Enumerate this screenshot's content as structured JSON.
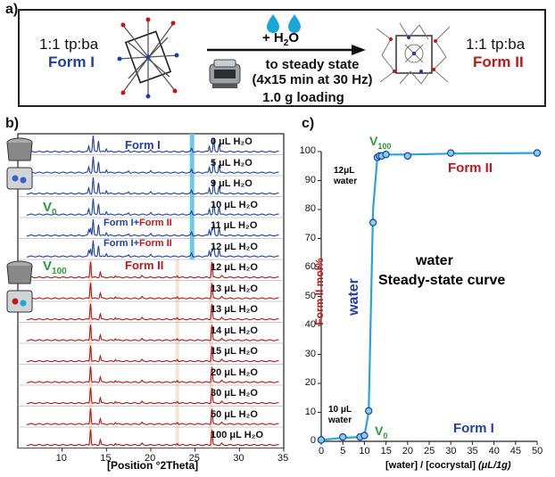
{
  "panel_a": {
    "label": "a)",
    "left_ratio": "1:1 tp:ba",
    "left_form": "Form I",
    "arrow_top": "+ H",
    "arrow_top_sub": "2",
    "arrow_top_end": "O",
    "arrow_line1": "to steady state",
    "arrow_line2": "(4x15 min at 30 Hz)",
    "loading": "1.0 g loading",
    "right_ratio": "1:1 tp:ba",
    "right_form": "Form II",
    "colors": {
      "form_i": "#1f3fa6",
      "form_ii": "#c01818",
      "water_drop": "#1aa7d8"
    }
  },
  "panel_b": {
    "label": "b)",
    "xlabel": "[Position °2Theta]",
    "x_ticks": [
      "10",
      "15",
      "20",
      "25",
      "30",
      "35"
    ],
    "traces": [
      {
        "label": "0 μL H₂O",
        "form": "I"
      },
      {
        "label": "5 μL H₂O",
        "form": "I"
      },
      {
        "label": "9 μL H₂O",
        "form": "I"
      },
      {
        "label": "10 μL H₂O",
        "form": "I"
      },
      {
        "label": "11 μL H₂O",
        "form": "mix"
      },
      {
        "label": "12 μL H₂O",
        "form": "mix"
      },
      {
        "label": "12 μL H₂O",
        "form": "II"
      },
      {
        "label": "13 μL H₂O",
        "form": "II"
      },
      {
        "label": "13 μL H₂O",
        "form": "II"
      },
      {
        "label": "14 μL H₂O",
        "form": "II"
      },
      {
        "label": "15 μL H₂O",
        "form": "II"
      },
      {
        "label": "20 μL H₂O",
        "form": "II"
      },
      {
        "label": "30 μL H₂O",
        "form": "II"
      },
      {
        "label": "50 μL H₂O",
        "form": "II"
      },
      {
        "label": "100 μL H₂O",
        "form": "II"
      }
    ],
    "form_i_label": "Form I",
    "mix_label_a": "Form I+",
    "mix_label_b": "Form II",
    "form_ii_label": "Form II",
    "v0": "V",
    "v0_sub": "0",
    "v100": "V",
    "v100_sub": "100"
  },
  "chart_data": {
    "type": "line",
    "label": "c)",
    "ylabel": "Form II mol%",
    "xlabel": "[water] / [cocrystal]",
    "xlabel_unit": "(μL/1g)",
    "xlim": [
      0,
      50
    ],
    "ylim": [
      0,
      100
    ],
    "x_ticks": [
      0,
      5,
      10,
      15,
      20,
      25,
      30,
      35,
      40,
      45,
      50
    ],
    "y_ticks": [
      0,
      10,
      20,
      30,
      40,
      50,
      60,
      70,
      80,
      90,
      100
    ],
    "x": [
      0,
      5,
      9,
      10,
      11,
      12,
      13,
      13.5,
      14,
      15,
      20,
      30,
      50
    ],
    "y": [
      0.5,
      1.5,
      1.5,
      2,
      10.5,
      75.5,
      98,
      98.5,
      98.5,
      99,
      98.5,
      99.5,
      99.5
    ],
    "curve_x": [
      0,
      5,
      9,
      10,
      11,
      12,
      13,
      14,
      15,
      20,
      30,
      50
    ],
    "curve_y": [
      0.5,
      1.2,
      1.5,
      2,
      10,
      80,
      98,
      98.5,
      99,
      99,
      99.3,
      99.5
    ],
    "annotations": {
      "water_vertical": "water",
      "title_line1": "water",
      "title_line2": "Steady-state curve",
      "form_ii": "Form II",
      "form_i": "Form I",
      "v100": "V",
      "v100_sub": "100",
      "v0": "V",
      "v0_sub": "0",
      "note_12_a": "12μL",
      "note_12_b": "water",
      "note_10_a": "10 μL",
      "note_10_b": "water"
    },
    "colors": {
      "line": "#2aa6d6",
      "point_fill": "#7fd0ef",
      "point_stroke": "#1f3fa6",
      "ylabel": "#c01818",
      "water": "#1f3fa6",
      "v": "#2a9a3a"
    }
  }
}
